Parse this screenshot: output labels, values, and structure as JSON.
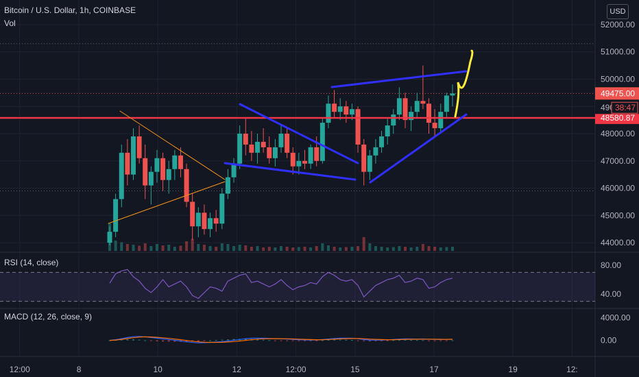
{
  "header": {
    "title": "Bitcoin / U.S. Dollar, 1h, COINBASE",
    "volume_label": "Vol",
    "currency_button": "USD"
  },
  "indicators": {
    "rsi_label": "RSI (14, close)",
    "macd_label": "MACD (12, 26, close, 9)"
  },
  "chart_data": {
    "type": "candlestick",
    "symbol": "Bitcoin / U.S. Dollar",
    "interval": "1h",
    "exchange": "COINBASE",
    "price_axis": {
      "ticks": [
        "52000.00",
        "51000.00",
        "50000.00",
        "49000.00",
        "48000.00",
        "47000.00",
        "46000.00",
        "45000.00",
        "44000.00"
      ],
      "tick_values": [
        52000,
        51000,
        50000,
        49000,
        48000,
        47000,
        46000,
        45000,
        44000
      ],
      "range": [
        43700,
        52400
      ]
    },
    "price_labels": [
      {
        "text": "49475.00",
        "value": 49475,
        "color": "#ef5350"
      },
      {
        "text": "48580.87",
        "value": 48580.87,
        "color": "#f23645"
      }
    ],
    "countdown_label": {
      "text": "38:47",
      "partial_price": "490"
    },
    "time_axis": {
      "ticks": [
        "12:00",
        "8",
        "10",
        "12",
        "12:00",
        "15",
        "17",
        "19",
        "12:"
      ],
      "tick_hours": [
        -36,
        0,
        48,
        96,
        132,
        168,
        216,
        264,
        300
      ],
      "range_hours": [
        -48,
        314
      ]
    },
    "candles_ohlc": [
      [
        44000,
        44600,
        43900,
        44400
      ],
      [
        44400,
        45800,
        44200,
        45600
      ],
      [
        45600,
        47600,
        45300,
        47300
      ],
      [
        47300,
        47800,
        46100,
        46500
      ],
      [
        46500,
        48200,
        46300,
        47900
      ],
      [
        47900,
        48300,
        46900,
        47100
      ],
      [
        47100,
        47600,
        45600,
        46100
      ],
      [
        46100,
        46800,
        45400,
        46600
      ],
      [
        46600,
        47400,
        46200,
        47100
      ],
      [
        47100,
        47300,
        45900,
        46300
      ],
      [
        46300,
        47000,
        45800,
        46700
      ],
      [
        46700,
        47400,
        46300,
        47200
      ],
      [
        47200,
        47500,
        46400,
        46700
      ],
      [
        46700,
        46900,
        45300,
        45500
      ],
      [
        45500,
        45800,
        44100,
        44600
      ],
      [
        44600,
        45300,
        44200,
        45100
      ],
      [
        45100,
        45400,
        44300,
        44500
      ],
      [
        44500,
        45100,
        44200,
        44900
      ],
      [
        44900,
        45200,
        44400,
        44700
      ],
      [
        44700,
        46000,
        44500,
        45800
      ],
      [
        45800,
        46700,
        45600,
        46400
      ],
      [
        46400,
        47100,
        46200,
        46900
      ],
      [
        46900,
        48300,
        46700,
        48000
      ],
      [
        48000,
        48600,
        47200,
        47600
      ],
      [
        47600,
        48100,
        47000,
        47300
      ],
      [
        47300,
        48000,
        46900,
        47700
      ],
      [
        47700,
        48200,
        47300,
        47500
      ],
      [
        47500,
        47900,
        46900,
        47100
      ],
      [
        47100,
        47800,
        46800,
        47500
      ],
      [
        47500,
        48300,
        47300,
        48000
      ],
      [
        48000,
        48200,
        47100,
        47300
      ],
      [
        47300,
        47500,
        46500,
        46800
      ],
      [
        46800,
        47300,
        46500,
        47000
      ],
      [
        47000,
        47400,
        46700,
        46900
      ],
      [
        46900,
        47600,
        46700,
        47500
      ],
      [
        47500,
        47900,
        46800,
        47000
      ],
      [
        47000,
        48600,
        46900,
        48400
      ],
      [
        48400,
        49400,
        48200,
        49100
      ],
      [
        49100,
        49600,
        48600,
        48800
      ],
      [
        48800,
        49300,
        48500,
        49000
      ],
      [
        49000,
        49200,
        48400,
        48700
      ],
      [
        48700,
        49100,
        48500,
        48900
      ],
      [
        48900,
        49000,
        47300,
        47600
      ],
      [
        47600,
        47800,
        46100,
        46600
      ],
      [
        46600,
        47400,
        46300,
        47200
      ],
      [
        47200,
        47800,
        46900,
        47500
      ],
      [
        47500,
        48100,
        47300,
        47900
      ],
      [
        47900,
        48600,
        47600,
        48300
      ],
      [
        48300,
        48900,
        48000,
        48700
      ],
      [
        48700,
        49700,
        48500,
        49300
      ],
      [
        49300,
        49500,
        48200,
        48500
      ],
      [
        48500,
        49000,
        48100,
        48800
      ],
      [
        48800,
        49500,
        48600,
        49200
      ],
      [
        49200,
        50500,
        48900,
        49100
      ],
      [
        49100,
        49300,
        48000,
        48400
      ],
      [
        48400,
        48900,
        47900,
        48200
      ],
      [
        48200,
        49100,
        48000,
        48800
      ],
      [
        48800,
        49500,
        48600,
        49400
      ],
      [
        49400,
        49800,
        49000,
        49475
      ]
    ],
    "volume": [
      80,
      30,
      25,
      20,
      18,
      15,
      22,
      14,
      20,
      16,
      18,
      12,
      15,
      28,
      35,
      20,
      18,
      14,
      12,
      22,
      20,
      14,
      18,
      16,
      12,
      14,
      10,
      12,
      10,
      14,
      12,
      10,
      11,
      12,
      10,
      14,
      22,
      16,
      12,
      10,
      11,
      12,
      14,
      40,
      22,
      14,
      12,
      10,
      11,
      14,
      12,
      10,
      12,
      20,
      14,
      12,
      10,
      11,
      12
    ],
    "rsi_axis": {
      "ticks": [
        "80.00",
        "40.00"
      ],
      "tick_values": [
        80,
        40
      ],
      "range": [
        22,
        96
      ],
      "bands": [
        70,
        30
      ]
    },
    "rsi": [
      55,
      68,
      72,
      74,
      64,
      58,
      48,
      42,
      50,
      60,
      50,
      54,
      58,
      50,
      38,
      34,
      42,
      50,
      48,
      44,
      58,
      62,
      66,
      68,
      56,
      58,
      54,
      50,
      54,
      60,
      52,
      46,
      50,
      52,
      56,
      54,
      64,
      70,
      66,
      60,
      58,
      60,
      52,
      36,
      44,
      52,
      56,
      60,
      62,
      66,
      56,
      58,
      62,
      60,
      48,
      50,
      56,
      60,
      62
    ],
    "macd_axis": {
      "ticks": [
        "4000.00",
        "0.00"
      ],
      "tick_values": [
        4000,
        0
      ],
      "range": [
        -2600,
        5400
      ]
    },
    "macd": {
      "macd": [
        0,
        120,
        300,
        500,
        650,
        700,
        620,
        500,
        380,
        260,
        150,
        20,
        -120,
        -260,
        -380,
        -440,
        -420,
        -360,
        -300,
        -240,
        -120,
        20,
        160,
        300,
        380,
        400,
        380,
        340,
        300,
        270,
        220,
        160,
        110,
        80,
        70,
        80,
        140,
        240,
        330,
        380,
        390,
        380,
        300,
        140,
        60,
        40,
        60,
        100,
        160,
        230,
        260,
        250,
        240,
        250,
        200,
        160,
        150,
        170,
        200
      ],
      "signal": [
        0,
        60,
        170,
        320,
        470,
        580,
        620,
        600,
        540,
        450,
        350,
        240,
        110,
        -20,
        -150,
        -260,
        -330,
        -360,
        -360,
        -340,
        -290,
        -210,
        -110,
        10,
        120,
        210,
        270,
        300,
        310,
        300,
        280,
        250,
        210,
        170,
        140,
        120,
        120,
        150,
        200,
        260,
        300,
        320,
        320,
        280,
        230,
        180,
        140,
        120,
        120,
        140,
        170,
        190,
        200,
        210,
        210,
        200,
        190,
        180,
        185
      ]
    }
  }
}
